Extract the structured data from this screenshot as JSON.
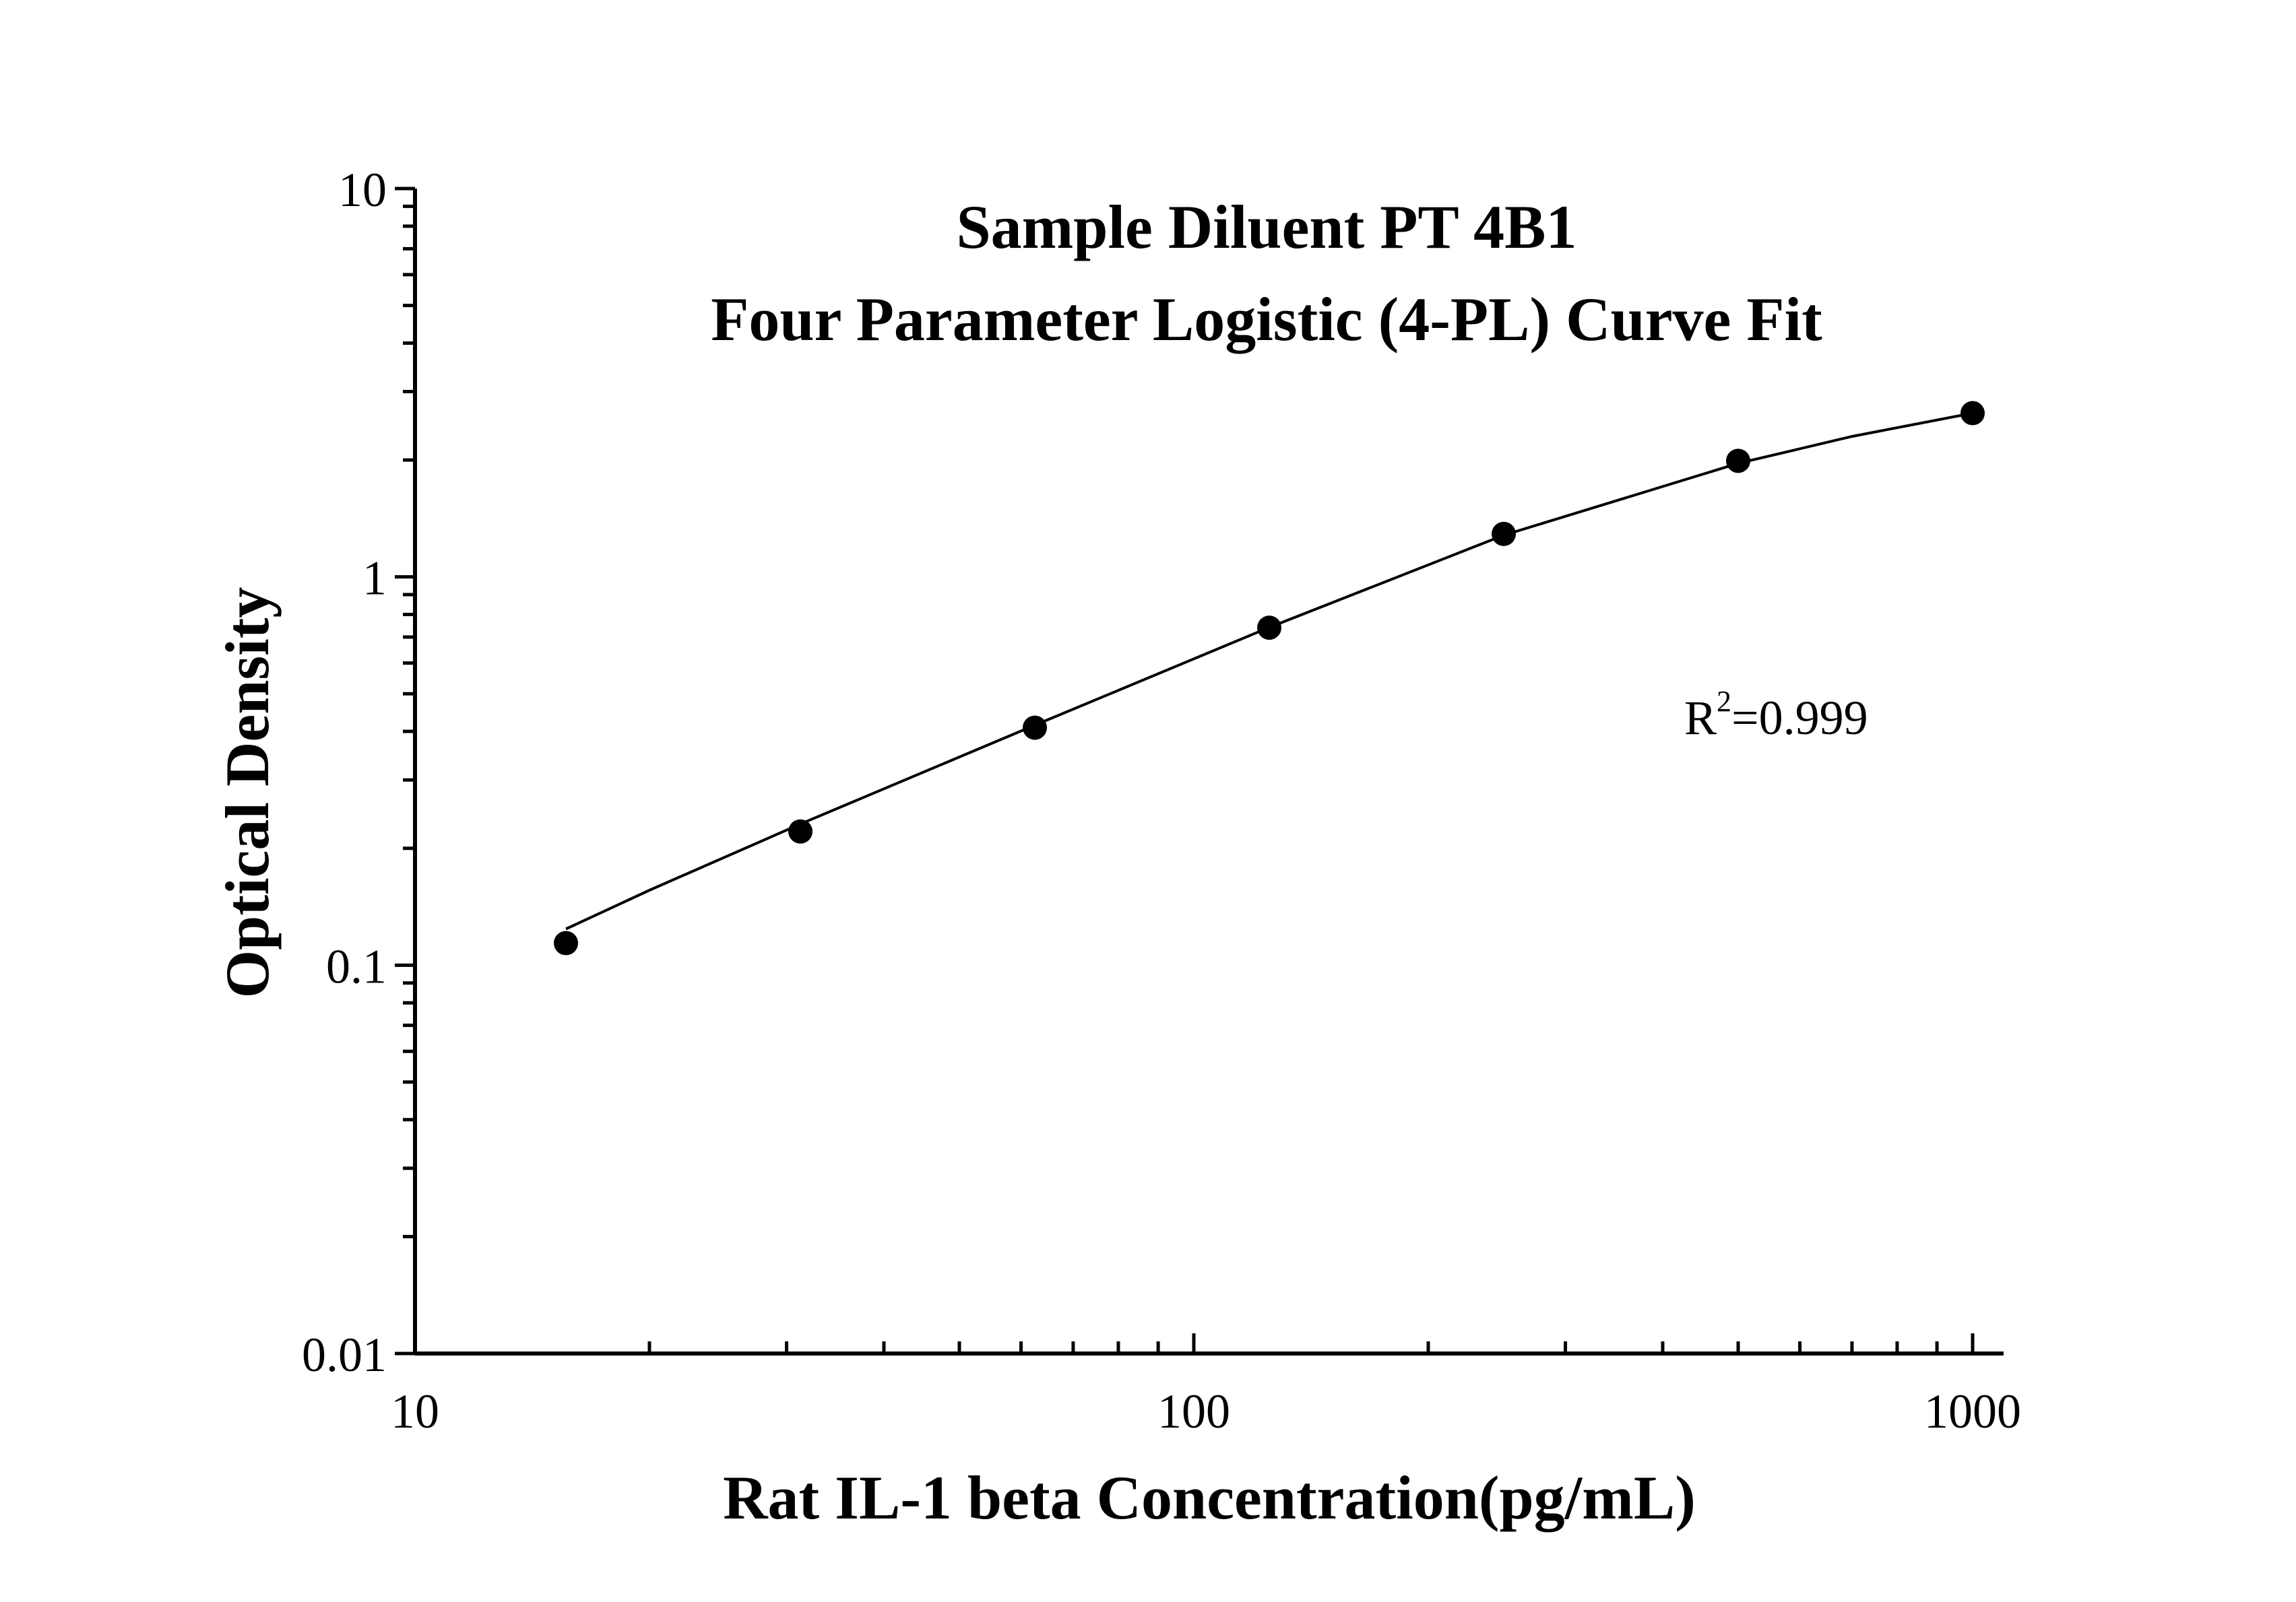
{
  "chart_data": {
    "type": "scatter",
    "title": "Sample Diluent PT 4B1",
    "subtitle": "Four Parameter Logistic (4-PL) Curve Fit",
    "xlabel": "Rat IL-1 beta Concentration(pg/mL)",
    "ylabel": "Optical Density",
    "x_scale": "log",
    "y_scale": "log",
    "xlim": [
      10,
      1000
    ],
    "ylim": [
      0.01,
      10
    ],
    "x_ticks": [
      "10",
      "100",
      "1000"
    ],
    "y_ticks": [
      "0.01",
      "0.1",
      "1",
      "10"
    ],
    "grid": false,
    "legend": "none",
    "series": [
      {
        "type": "scatter",
        "x": [
          15.625,
          31.25,
          62.5,
          125,
          250,
          500,
          1000
        ],
        "y": [
          0.114,
          0.221,
          0.409,
          0.74,
          1.29,
          1.99,
          2.64
        ]
      },
      {
        "type": "line",
        "x": [
          15.625,
          20,
          31.25,
          62.5,
          125,
          250,
          500,
          700,
          1000
        ],
        "y": [
          0.124,
          0.156,
          0.231,
          0.415,
          0.741,
          1.28,
          1.96,
          2.3,
          2.64
        ]
      }
    ],
    "annotation": {
      "base": "R",
      "superscript": "2",
      "suffix": "=0.999"
    },
    "colors": {
      "marks": "#000000",
      "background": "#ffffff"
    }
  }
}
